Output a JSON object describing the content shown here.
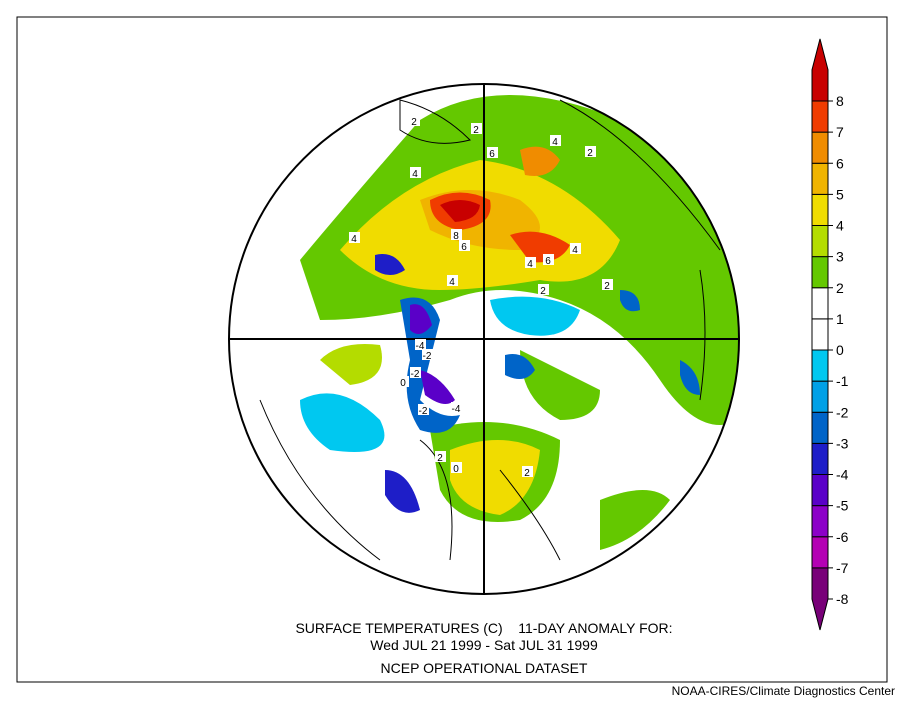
{
  "title": {
    "line1": "SURFACE TEMPERATURES (C)    11-DAY ANOMALY FOR:",
    "line2": "Wed JUL 21 1999 - Sat JUL 31 1999",
    "line3": "NCEP OPERATIONAL DATASET"
  },
  "credit": "NOAA-CIRES/Climate Diagnostics Center",
  "colorbar": {
    "levels": [
      -8,
      -7,
      -6,
      -5,
      -4,
      -3,
      -2,
      -1,
      0,
      1,
      2,
      3,
      4,
      5,
      6,
      7,
      8
    ],
    "colors": [
      "#780078",
      "#b400b4",
      "#8c00c8",
      "#5a00c8",
      "#1e1ec8",
      "#0064c8",
      "#00a0e6",
      "#00c8f0",
      "#ffffff",
      "#ffffff",
      "#64c800",
      "#b4dc00",
      "#f0dc00",
      "#f0b400",
      "#f08c00",
      "#f03c00",
      "#c80000"
    ]
  },
  "contour_labels": [
    2,
    2,
    6,
    4,
    2,
    4,
    8,
    6,
    4,
    4,
    6,
    4,
    4,
    2,
    -4,
    -2,
    -2,
    -4,
    -2,
    2,
    2,
    0,
    0,
    2
  ]
}
